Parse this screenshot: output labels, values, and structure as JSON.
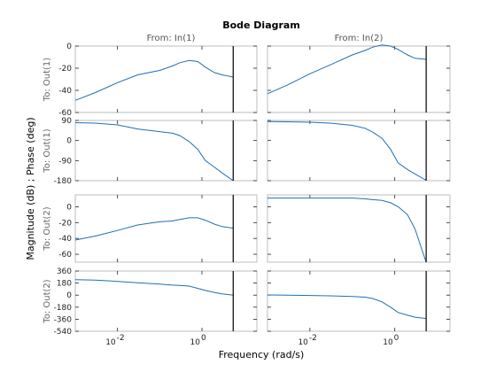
{
  "chart_data": {
    "type": "line",
    "title": "Bode Diagram",
    "xlabel": "Frequency  (rad/s)",
    "ylabel": "Magnitude (dB) ; Phase (deg)",
    "columns": [
      "From: In(1)",
      "From: In(2)"
    ],
    "row_labels": [
      "To: Out(1)",
      "To: Out(1)",
      "To: Out(2)",
      "To: Out(2)"
    ],
    "x_scale": "log",
    "xlim": [
      0.001,
      20
    ],
    "x_ticks": [
      0.01,
      1
    ],
    "x_tick_labels": [
      {
        "base": "10",
        "exp": "-2"
      },
      {
        "base": "10",
        "exp": "0"
      }
    ],
    "nyquist_frequency": 5.5,
    "rows": [
      {
        "kind": "magnitude",
        "ylim": [
          -60,
          0
        ],
        "yticks": [
          0,
          -20,
          -40,
          -60
        ],
        "ytick_labels": [
          "0",
          "-20",
          "-40",
          "-60"
        ],
        "series": [
          {
            "x": [
              0.001,
              0.003,
              0.01,
              0.03,
              0.1,
              0.2,
              0.3,
              0.5,
              0.8,
              1.2,
              2,
              3,
              5.5
            ],
            "y": [
              -49,
              -42,
              -33,
              -26,
              -22,
              -18,
              -15,
              -13,
              -14,
              -19,
              -24,
              -26,
              -28
            ]
          },
          {
            "x": [
              0.001,
              0.003,
              0.01,
              0.03,
              0.1,
              0.2,
              0.3,
              0.5,
              0.8,
              1.2,
              2,
              3,
              5.5
            ],
            "y": [
              -43,
              -35,
              -25,
              -17,
              -8,
              -4,
              -1,
              1,
              0,
              -3,
              -8,
              -11,
              -12
            ]
          }
        ]
      },
      {
        "kind": "phase",
        "ylim": [
          -180,
          90
        ],
        "yticks": [
          90,
          0,
          -90,
          -180
        ],
        "ytick_labels": [
          "90",
          "0",
          "-90",
          "-180"
        ],
        "series": [
          {
            "x": [
              0.001,
              0.003,
              0.01,
              0.03,
              0.1,
              0.2,
              0.3,
              0.5,
              0.8,
              1.2,
              2,
              3,
              5.5
            ],
            "y": [
              80,
              78,
              70,
              52,
              40,
              33,
              22,
              -5,
              -40,
              -90,
              -120,
              -145,
              -180
            ]
          },
          {
            "x": [
              0.001,
              0.003,
              0.01,
              0.03,
              0.1,
              0.2,
              0.3,
              0.5,
              0.8,
              1.2,
              2,
              3,
              5.5
            ],
            "y": [
              85,
              84,
              82,
              78,
              68,
              55,
              38,
              10,
              -40,
              -100,
              -130,
              -150,
              -178
            ]
          }
        ]
      },
      {
        "kind": "magnitude",
        "ylim": [
          -70,
          15
        ],
        "yticks": [
          0,
          -20,
          -40,
          -60
        ],
        "ytick_labels": [
          "0",
          "-20",
          "-40",
          "-60"
        ],
        "series": [
          {
            "x": [
              0.001,
              0.003,
              0.01,
              0.03,
              0.1,
              0.2,
              0.3,
              0.5,
              0.8,
              1.2,
              2,
              3,
              5.5
            ],
            "y": [
              -42,
              -37,
              -30,
              -23,
              -19,
              -18,
              -16,
              -14,
              -14,
              -17,
              -22,
              -25,
              -27
            ]
          },
          {
            "x": [
              0.001,
              0.003,
              0.01,
              0.03,
              0.1,
              0.2,
              0.3,
              0.5,
              0.8,
              1.2,
              2,
              3,
              5.5
            ],
            "y": [
              11,
              11,
              11,
              11,
              11,
              10,
              9,
              8,
              5,
              0,
              -10,
              -28,
              -70
            ]
          }
        ]
      },
      {
        "kind": "phase",
        "ylim": [
          -540,
          360
        ],
        "yticks": [
          360,
          180,
          0,
          -180,
          -360,
          -540
        ],
        "ytick_labels": [
          "360",
          "180",
          "0",
          "-180",
          "-360",
          "-540"
        ],
        "series": [
          {
            "x": [
              0.001,
              0.003,
              0.01,
              0.03,
              0.1,
              0.2,
              0.3,
              0.5,
              0.8,
              1.2,
              2,
              3,
              5.5
            ],
            "y": [
              230,
              225,
              205,
              185,
              165,
              150,
              145,
              135,
              100,
              70,
              40,
              20,
              0
            ]
          },
          {
            "x": [
              0.001,
              0.003,
              0.01,
              0.03,
              0.1,
              0.2,
              0.3,
              0.5,
              0.8,
              1.2,
              2,
              3,
              5.5
            ],
            "y": [
              2,
              0,
              -5,
              -10,
              -20,
              -30,
              -50,
              -100,
              -180,
              -260,
              -300,
              -330,
              -350
            ]
          }
        ]
      }
    ],
    "grid": false,
    "legend": "none"
  },
  "colors": {
    "curve": "#1f6fb4",
    "axes_box": "#bdbdbd",
    "nyquist_line": "#000000"
  }
}
